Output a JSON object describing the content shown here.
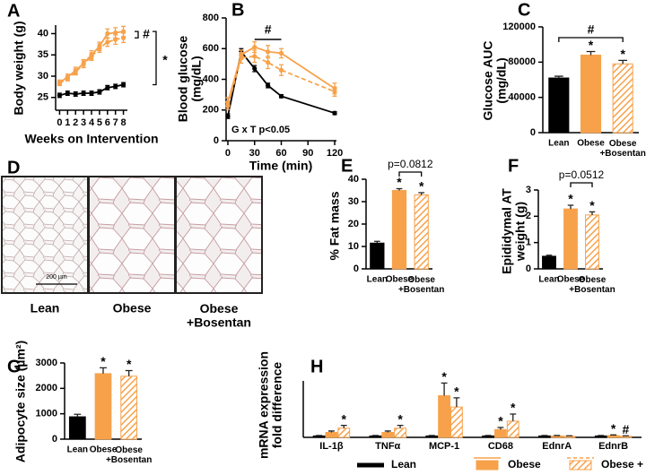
{
  "chart_data": [
    {
      "type": "line",
      "panel": "A",
      "ylabel": "Body weight (g)",
      "xlabel": "Weeks on Intervention",
      "x": [
        0,
        1,
        2,
        3,
        4,
        5,
        6,
        7,
        8
      ],
      "xlim": [
        -0.5,
        8.5
      ],
      "xticks": [
        0,
        1,
        2,
        3,
        4,
        5,
        6,
        7,
        8
      ],
      "ylim": [
        22,
        42
      ],
      "yticks": [
        25,
        30,
        35,
        40
      ],
      "series": [
        {
          "color": "#000000",
          "dash": false,
          "values": [
            25.5,
            26,
            25.8,
            26,
            26,
            26.3,
            27.3,
            27.6,
            28
          ],
          "errors": [
            0.5,
            0.5,
            0.5,
            0.5,
            0.5,
            0.5,
            0.5,
            0.5,
            0.5
          ]
        },
        {
          "color": "#f7a24b",
          "dash": false,
          "values": [
            28.5,
            29.8,
            31.3,
            33,
            35,
            37,
            40,
            40.2,
            40.5
          ],
          "errors": [
            0.6,
            0.7,
            0.8,
            0.9,
            1,
            1,
            1.1,
            1.2,
            1.2
          ]
        },
        {
          "color": "#f7a24b",
          "dash": true,
          "values": [
            28.3,
            29.5,
            31,
            32.8,
            34.6,
            36.6,
            38,
            38.6,
            39
          ],
          "errors": [
            0.5,
            0.6,
            0.7,
            0.8,
            0.9,
            1,
            1,
            1.1,
            1.1
          ]
        }
      ],
      "annotations": [
        "#",
        "*"
      ]
    },
    {
      "type": "line",
      "panel": "B",
      "ylabel": "Blood glucose\n(mg/dL)",
      "xlabel": "Time (min)",
      "x": [
        0,
        15,
        30,
        45,
        60,
        120
      ],
      "xlim": [
        -2,
        122
      ],
      "xticks": [
        0,
        30,
        60,
        90,
        120
      ],
      "ylim": [
        0,
        800
      ],
      "yticks": [
        0,
        200,
        400,
        600,
        800
      ],
      "series": [
        {
          "color": "#000000",
          "dash": false,
          "values": [
            160,
            580,
            470,
            360,
            290,
            180
          ],
          "errors": [
            15,
            20,
            20,
            15,
            10,
            10
          ]
        },
        {
          "color": "#f7a24b",
          "dash": false,
          "values": [
            250,
            560,
            610,
            580,
            570,
            340
          ],
          "errors": [
            30,
            30,
            35,
            40,
            30,
            35
          ]
        },
        {
          "color": "#f7a24b",
          "dash": true,
          "values": [
            230,
            540,
            550,
            510,
            460,
            320
          ],
          "errors": [
            25,
            35,
            40,
            40,
            35,
            30
          ]
        }
      ],
      "annotations": [
        "#",
        "G x T p<0.05"
      ]
    },
    {
      "type": "bar",
      "panel": "C",
      "ylabel": "Glucose AUC\n(mg/dL)",
      "categories": [
        "Lean",
        "Obese",
        "Obese\n+Bosentan"
      ],
      "values": [
        62000,
        88000,
        78000
      ],
      "errors": [
        2000,
        4000,
        4000
      ],
      "colors": [
        "#000000",
        "#f7a24b",
        "#f7a24b"
      ],
      "hatched": [
        false,
        false,
        true
      ],
      "markers": [
        null,
        "*",
        "*"
      ],
      "ylim": [
        0,
        120000
      ],
      "yticks": [
        0,
        40000,
        80000,
        120000
      ],
      "annotations": [
        "#"
      ]
    },
    {
      "type": "micrograph",
      "panel": "D",
      "labels": [
        "Lean",
        "Obese",
        "Obese\n+Bosentan"
      ],
      "scale_bar": "200 µm"
    },
    {
      "type": "bar",
      "panel": "E",
      "ylabel": "% Fat mass",
      "categories": [
        "Lean",
        "Obese",
        "Obese\n+Bosentan"
      ],
      "values": [
        11.5,
        35,
        33
      ],
      "errors": [
        0.8,
        0.8,
        1
      ],
      "colors": [
        "#000000",
        "#f7a24b",
        "#f7a24b"
      ],
      "hatched": [
        false,
        false,
        true
      ],
      "markers": [
        null,
        "*",
        "*"
      ],
      "ylim": [
        0,
        40
      ],
      "yticks": [
        0,
        10,
        20,
        30,
        40
      ],
      "annotations": [
        "p=0.0812"
      ]
    },
    {
      "type": "bar",
      "panel": "F",
      "ylabel": "Epididymal AT\nweight (g)",
      "categories": [
        "Lean",
        "Obese",
        "Obese\n+Bosentan"
      ],
      "values": [
        0.48,
        2.28,
        2.05
      ],
      "errors": [
        0.04,
        0.14,
        0.12
      ],
      "colors": [
        "#000000",
        "#f7a24b",
        "#f7a24b"
      ],
      "hatched": [
        false,
        false,
        true
      ],
      "markers": [
        null,
        "*",
        "*"
      ],
      "ylim": [
        0,
        3
      ],
      "yticks": [
        0,
        1,
        2,
        3
      ],
      "annotations": [
        "p=0.0512"
      ]
    },
    {
      "type": "bar",
      "panel": "G",
      "ylabel": "Adipocyte size (µm²)",
      "categories": [
        "Lean",
        "Obese",
        "Obese\n+Bosentan"
      ],
      "values": [
        880,
        2580,
        2480
      ],
      "errors": [
        100,
        230,
        220
      ],
      "colors": [
        "#000000",
        "#f7a24b",
        "#f7a24b"
      ],
      "hatched": [
        false,
        false,
        true
      ],
      "markers": [
        null,
        "*",
        "*"
      ],
      "ylim": [
        0,
        3000
      ],
      "yticks": [
        0,
        1000,
        2000,
        3000
      ]
    },
    {
      "type": "grouped_bar",
      "panel": "H",
      "ylabel": "mRNA expression\nfold difference",
      "categories": [
        "IL-1β",
        "TNFα",
        "MCP-1",
        "CD68",
        "EdnrA",
        "EdnrB"
      ],
      "ylim": [
        0,
        40
      ],
      "series": [
        {
          "name": "Lean",
          "color": "#000000",
          "hatched": false,
          "values": [
            1,
            1,
            1,
            1,
            1,
            1
          ],
          "errors": [
            0.3,
            0.3,
            0.3,
            0.3,
            0.3,
            0.3
          ],
          "markers": [
            null,
            null,
            null,
            null,
            null,
            null
          ]
        },
        {
          "name": "Obese",
          "color": "#f7a24b",
          "hatched": false,
          "values": [
            3.5,
            3.5,
            29.5,
            5.5,
            1,
            1.3
          ],
          "errors": [
            1,
            1,
            9,
            1.5,
            0.3,
            0.4
          ],
          "markers": [
            null,
            null,
            "*",
            "*",
            null,
            "*"
          ]
        },
        {
          "name": "Obese + Bosentan",
          "color": "#f7a24b",
          "hatched": true,
          "values": [
            6.5,
            6.5,
            21.5,
            11.5,
            0.8,
            0.8
          ],
          "errors": [
            2,
            2,
            6.5,
            5,
            0.3,
            0.3
          ],
          "markers": [
            "*",
            "*",
            "*",
            "*",
            null,
            "#"
          ]
        }
      ]
    }
  ]
}
